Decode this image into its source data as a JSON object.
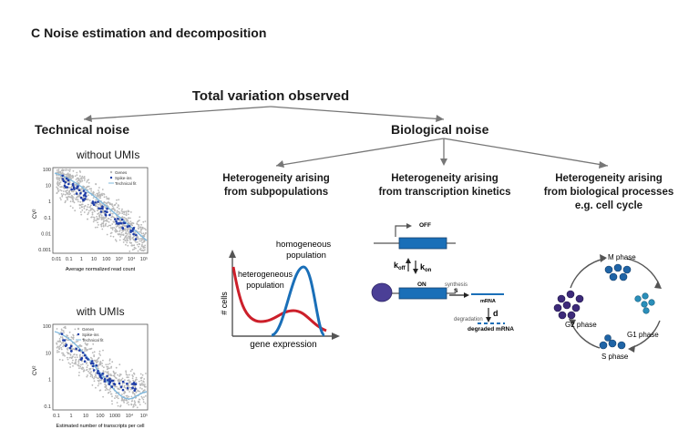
{
  "panel": {
    "letter": "C",
    "title": "Noise estimation and decomposition"
  },
  "tree": {
    "root": "Total variation observed",
    "left": "Technical noise",
    "right": "Biological noise",
    "subs": [
      {
        "line1": "Heterogeneity arising",
        "line2": "from subpopulations",
        "line3": ""
      },
      {
        "line1": "Heterogeneity arising",
        "line2": "from transcription kinetics",
        "line3": ""
      },
      {
        "line1": "Heterogeneity arising",
        "line2": "from biological processes",
        "line3": "e.g. cell cycle"
      }
    ]
  },
  "scatter_top": {
    "title": "without UMIs",
    "ylabel": "CV²",
    "xlabel": "Average normalized read count",
    "yticks": [
      "100",
      "10",
      "1",
      "0.1",
      "0.01",
      "0.001"
    ],
    "xticks": [
      "0.01",
      "0.1",
      "1",
      "10",
      "100",
      "10³",
      "10⁴",
      "10⁵"
    ],
    "legend": [
      "Genes",
      "Spike-ins",
      "Technical fit"
    ]
  },
  "scatter_bottom": {
    "title": "with UMIs",
    "ylabel": "CV²",
    "xlabel": "Estimated number of transcripts per cell",
    "yticks": [
      "100",
      "10",
      "1",
      "0.1"
    ],
    "xticks": [
      "0.1",
      "1",
      "10",
      "100",
      "1000",
      "10⁴",
      "10⁵"
    ],
    "legend": [
      "Genes",
      "Spike-ins",
      "Technical fit"
    ]
  },
  "distribution": {
    "ylabel": "# cells",
    "xlabel": "gene expression",
    "homogeneous": [
      "homogeneous",
      "population"
    ],
    "heterogeneous": [
      "heterogeneous",
      "population"
    ],
    "colors": {
      "heterogeneous": "#cc1f2a",
      "homogeneous": "#1a6fb8"
    }
  },
  "kinetics": {
    "off": "OFF",
    "on": "ON",
    "koff": "k",
    "koff_sub": "off",
    "kon": "k",
    "kon_sub": "on",
    "synthesis": "synthesis",
    "s": "s",
    "mrna": "mRNA",
    "degradation": "degradation",
    "d": "d",
    "degraded": "degraded mRNA",
    "colors": {
      "gene": "#1a6fb8",
      "polymerase": "#4b3f96"
    }
  },
  "cellcycle": {
    "m": "M phase",
    "g1": "G1 phase",
    "s": "S phase",
    "g2": "G2 phase",
    "colors": {
      "g2": "#3d2a7a",
      "m": "#1f64a6",
      "g1": "#2a8fba",
      "s": "#1f64a6"
    }
  },
  "colors": {
    "spike": "#1f3ea8",
    "gene": "#b8b8b8",
    "fit": "#7fb8dd"
  }
}
